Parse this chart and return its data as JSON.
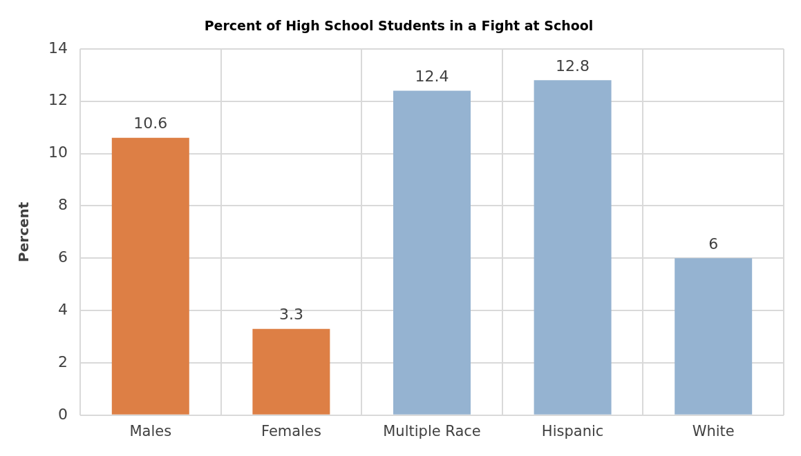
{
  "chart_data": {
    "type": "bar",
    "title": "Percent of High School Students in a Fight at School",
    "ylabel": "Percent",
    "categories": [
      "Males",
      "Females",
      "Multiple Race",
      "Hispanic",
      "White"
    ],
    "values": [
      10.6,
      3.3,
      12.4,
      12.8,
      6
    ],
    "colors": [
      "#dd7f45",
      "#dd7f45",
      "#95b3d1",
      "#95b3d1",
      "#95b3d1"
    ],
    "ylim": [
      0,
      14
    ],
    "yticks": [
      0,
      2,
      4,
      6,
      8,
      10,
      12,
      14
    ],
    "grid": true,
    "data_labels": true,
    "legend": false
  }
}
